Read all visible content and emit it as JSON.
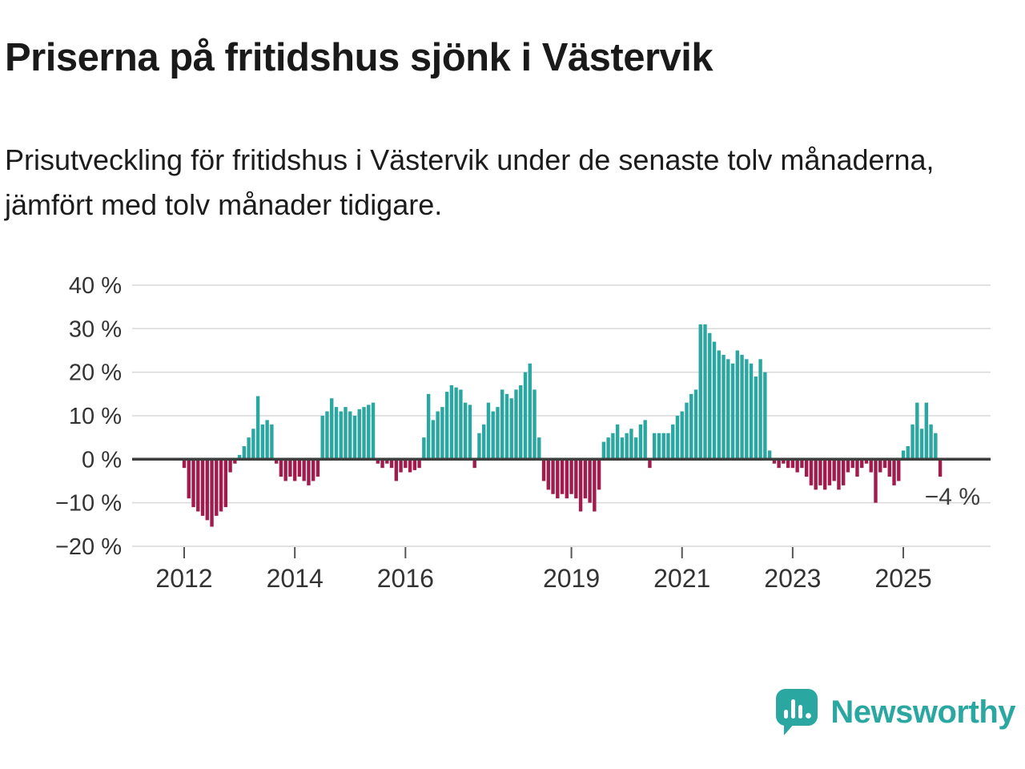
{
  "header": {
    "title": "Priserna på fritidshus sjönk i Västervik",
    "subtitle": "Prisutveckling för fritidshus i Västervik under de senaste tolv månaderna, jämfört med tolv månader tidigare."
  },
  "chart_data": {
    "type": "bar",
    "title": "Priserna på fritidshus sjönk i Västervik",
    "subtitle": "Prisutveckling för fritidshus i Västervik under de senaste tolv månaderna, jämfört med tolv månader tidigare.",
    "unit": "%",
    "frequency": "monthly",
    "start": {
      "year": 2012,
      "month": 1
    },
    "values": [
      -2,
      -9,
      -11,
      -12,
      -13,
      -14,
      -15.5,
      -13,
      -12,
      -11,
      -3,
      -1,
      1,
      3,
      5,
      7,
      14.5,
      8,
      9,
      8,
      -1,
      -4,
      -5,
      -4,
      -5,
      -4,
      -5,
      -6,
      -5,
      -4,
      10,
      11,
      14,
      12,
      11,
      12,
      11,
      10,
      11.5,
      12,
      12.5,
      13,
      -1,
      -2,
      -1,
      -2,
      -5,
      -3,
      -2,
      -3,
      -2.5,
      -2,
      5,
      15,
      9,
      11,
      12,
      15.5,
      17,
      16.5,
      16,
      13,
      12.5,
      -2,
      6,
      8,
      13,
      11,
      12,
      16,
      15,
      14,
      16,
      17,
      20,
      22,
      16,
      5,
      -5,
      -7,
      -8,
      -9,
      -8,
      -9,
      -8,
      -9,
      -12,
      -9,
      -10,
      -12,
      -7,
      4,
      5,
      6,
      8,
      5,
      6,
      7,
      5,
      8,
      9,
      -2,
      6,
      6,
      6,
      6,
      8,
      10,
      11,
      13,
      15,
      16,
      31,
      31,
      29,
      27,
      25,
      24,
      23,
      22,
      25,
      24,
      23,
      22,
      19,
      23,
      20,
      2,
      -1,
      -2,
      -1,
      -2,
      -2,
      -3,
      -2,
      -4,
      -6,
      -7,
      -6,
      -7,
      -6,
      -5,
      -7,
      -6,
      -3,
      -2,
      -4,
      -2,
      -1,
      -3,
      -10,
      -3,
      -2,
      -4,
      -6,
      -5,
      2,
      3,
      8,
      13,
      7,
      13,
      8,
      6,
      -4
    ],
    "ylim": [
      -20,
      40
    ],
    "yticks": [
      40,
      30,
      20,
      10,
      0,
      -10,
      -20
    ],
    "ytick_labels": [
      "40 %",
      "30 %",
      "20 %",
      "10 %",
      "0 %",
      "−10 %",
      "−20 %"
    ],
    "xticks": [
      2012,
      2014,
      2016,
      2019,
      2021,
      2023,
      2025
    ],
    "xtick_labels": [
      "2012",
      "2014",
      "2016",
      "2019",
      "2021",
      "2023",
      "2025"
    ],
    "annotation": {
      "text": "−4 %",
      "value": -4
    },
    "grid": true,
    "legend": "none",
    "colors": {
      "positive": "#2aa7a1",
      "negative": "#a11c4c",
      "zero_line": "#3d3d3d",
      "grid_line": "#d9d9d9",
      "axis_text": "#333333"
    }
  },
  "footer": {
    "brand": "Newsworthy",
    "brand_color": "#2aa7a1",
    "logo_icon": "bar-chart-badge-icon"
  }
}
